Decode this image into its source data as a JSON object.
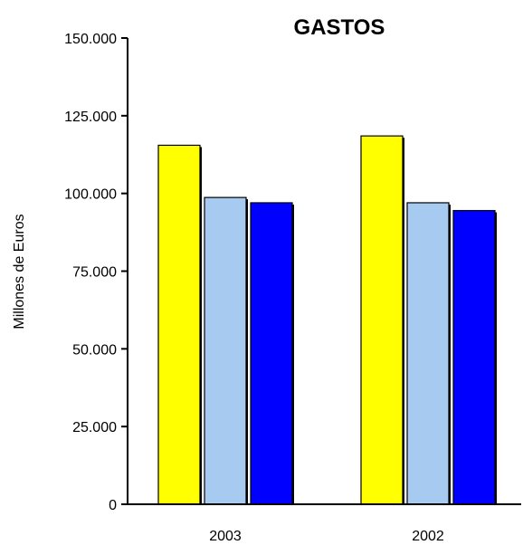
{
  "chart_data": {
    "type": "bar",
    "title": "GASTOS",
    "ylabel": "Millones de Euros",
    "xlabel": "",
    "categories": [
      "2003",
      "2002"
    ],
    "ylim": [
      0,
      150000
    ],
    "yticks": [
      {
        "value": 0,
        "label": "0"
      },
      {
        "value": 25000,
        "label": "25.000"
      },
      {
        "value": 50000,
        "label": "50.000"
      },
      {
        "value": 75000,
        "label": "75.000"
      },
      {
        "value": 100000,
        "label": "100.000"
      },
      {
        "value": 125000,
        "label": "125.000"
      },
      {
        "value": 150000,
        "label": "150.000"
      }
    ],
    "grid": false,
    "legend": "none",
    "series": [
      {
        "color": "#ffff00",
        "values": [
          115500,
          118500
        ]
      },
      {
        "color": "#a6caf0",
        "values": [
          98700,
          97000
        ]
      },
      {
        "color": "#0000ff",
        "values": [
          97000,
          94500
        ]
      }
    ]
  }
}
